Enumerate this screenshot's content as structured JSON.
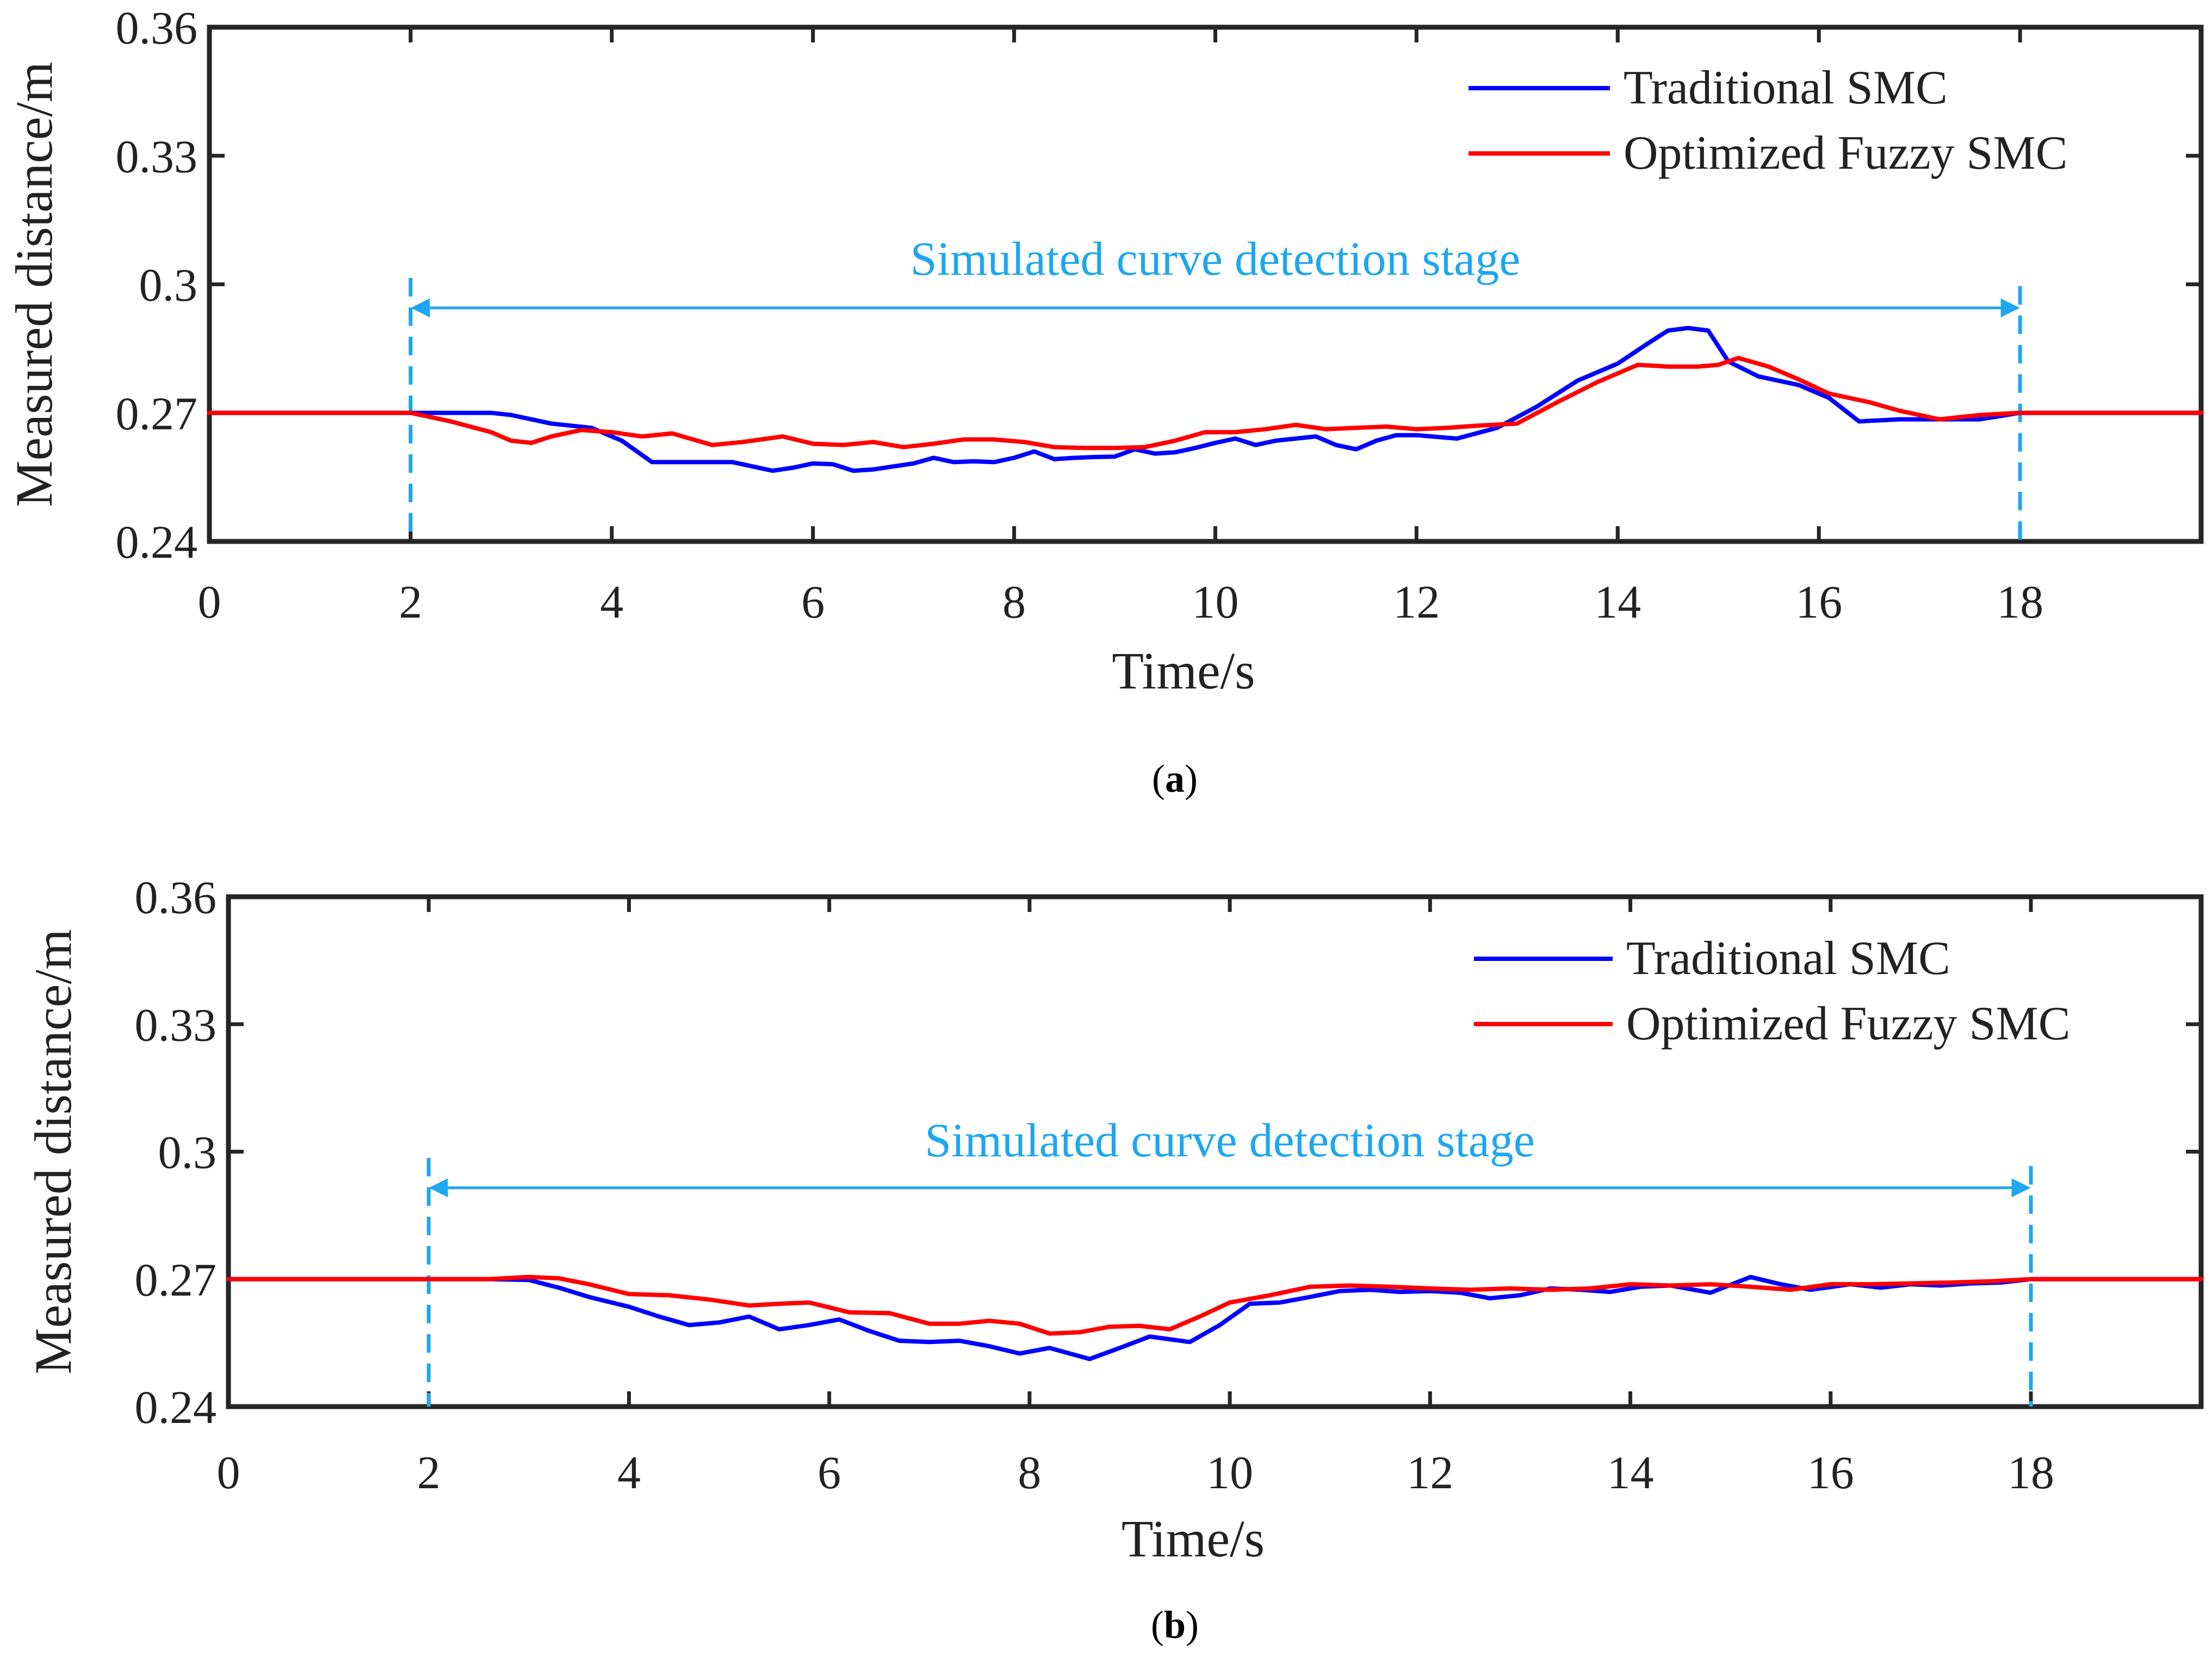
{
  "chart_data": [
    {
      "type": "line",
      "panel_label": "a",
      "xlabel": "Time/s",
      "ylabel": "Measured distance/m",
      "xlim": [
        0,
        19.8
      ],
      "ylim": [
        0.24,
        0.36
      ],
      "xticks": [
        "0",
        "2",
        "4",
        "6",
        "8",
        "10",
        "12",
        "14",
        "16",
        "18"
      ],
      "yticks": [
        "0.24",
        "0.27",
        "0.3",
        "0.33",
        "0.36"
      ],
      "grid": false,
      "legend_position": "top-right",
      "annotation": {
        "text": "Simulated curve detection stage",
        "x_start": 2,
        "x_end": 18,
        "arrow_y": 0.2945
      },
      "series": [
        {
          "name": "Traditional SMC",
          "color": "#0000ff",
          "x": [
            0,
            2,
            2.4,
            2.8,
            3.0,
            3.4,
            3.8,
            4.1,
            4.4,
            4.8,
            5.2,
            5.6,
            5.8,
            6.0,
            6.2,
            6.4,
            6.6,
            6.8,
            7.0,
            7.2,
            7.4,
            7.6,
            7.8,
            8.0,
            8.2,
            8.4,
            8.6,
            8.8,
            9.0,
            9.2,
            9.4,
            9.6,
            9.8,
            10.0,
            10.2,
            10.4,
            10.6,
            10.8,
            11.0,
            11.2,
            11.4,
            11.6,
            11.8,
            12.0,
            12.4,
            12.8,
            13.2,
            13.6,
            14.0,
            14.3,
            14.5,
            14.7,
            14.9,
            15.1,
            15.4,
            15.8,
            16.1,
            16.4,
            16.8,
            17.2,
            17.6,
            18.0,
            19.8
          ],
          "values": [
            0.27,
            0.27,
            0.27,
            0.27,
            0.2695,
            0.2675,
            0.2665,
            0.2635,
            0.2585,
            0.2585,
            0.2585,
            0.2565,
            0.2572,
            0.2582,
            0.258,
            0.2565,
            0.2568,
            0.2575,
            0.2582,
            0.2595,
            0.2585,
            0.2587,
            0.2585,
            0.2595,
            0.261,
            0.2592,
            0.2595,
            0.2597,
            0.2598,
            0.2615,
            0.2605,
            0.2608,
            0.2618,
            0.263,
            0.264,
            0.2625,
            0.2635,
            0.264,
            0.2645,
            0.2625,
            0.2615,
            0.2635,
            0.2648,
            0.2648,
            0.264,
            0.2665,
            0.2715,
            0.2775,
            0.2815,
            0.2862,
            0.2892,
            0.2898,
            0.2892,
            0.282,
            0.2785,
            0.2765,
            0.2735,
            0.268,
            0.2685,
            0.2685,
            0.2685,
            0.27,
            0.27
          ]
        },
        {
          "name": "Optimized Fuzzy SMC",
          "color": "#ff0000",
          "x": [
            0,
            2,
            2.4,
            2.8,
            3.0,
            3.2,
            3.4,
            3.7,
            4.0,
            4.3,
            4.6,
            5.0,
            5.3,
            5.7,
            6.0,
            6.3,
            6.6,
            6.9,
            7.2,
            7.5,
            7.8,
            8.1,
            8.4,
            8.7,
            9.0,
            9.3,
            9.6,
            9.9,
            10.2,
            10.5,
            10.8,
            11.1,
            11.4,
            11.7,
            12.0,
            12.3,
            12.6,
            13.0,
            13.4,
            13.8,
            14.2,
            14.5,
            14.8,
            15.0,
            15.2,
            15.5,
            15.8,
            16.1,
            16.5,
            16.8,
            17.2,
            17.6,
            18.0,
            19.8
          ],
          "values": [
            0.27,
            0.27,
            0.268,
            0.2655,
            0.2635,
            0.263,
            0.2645,
            0.266,
            0.2655,
            0.2645,
            0.2652,
            0.2625,
            0.2632,
            0.2645,
            0.2628,
            0.2625,
            0.2632,
            0.262,
            0.2628,
            0.2638,
            0.2638,
            0.2632,
            0.262,
            0.2618,
            0.2618,
            0.262,
            0.2635,
            0.2655,
            0.2655,
            0.2662,
            0.2672,
            0.2662,
            0.2665,
            0.2668,
            0.2662,
            0.2665,
            0.267,
            0.2675,
            0.2725,
            0.2772,
            0.2812,
            0.2808,
            0.2808,
            0.2812,
            0.2828,
            0.2808,
            0.2778,
            0.2745,
            0.2725,
            0.2705,
            0.2685,
            0.2695,
            0.27,
            0.27
          ]
        }
      ]
    },
    {
      "type": "line",
      "panel_label": "b",
      "xlabel": "Time/s",
      "ylabel": "Measured distance/m",
      "xlim": [
        0,
        19.7
      ],
      "ylim": [
        0.24,
        0.36
      ],
      "xticks": [
        "0",
        "2",
        "4",
        "6",
        "8",
        "10",
        "12",
        "14",
        "16",
        "18"
      ],
      "yticks": [
        "0.24",
        "0.27",
        "0.3",
        "0.33",
        "0.36"
      ],
      "grid": false,
      "legend_position": "top-right",
      "annotation": {
        "text": "Simulated curve detection stage",
        "x_start": 2,
        "x_end": 18,
        "arrow_y": 0.2915
      },
      "series": [
        {
          "name": "Traditional SMC",
          "color": "#0000ff",
          "x": [
            0,
            2,
            2.6,
            3.0,
            3.3,
            3.6,
            4.0,
            4.3,
            4.6,
            4.9,
            5.2,
            5.5,
            5.8,
            6.1,
            6.4,
            6.7,
            7.0,
            7.3,
            7.6,
            7.9,
            8.2,
            8.6,
            8.9,
            9.2,
            9.6,
            9.9,
            10.2,
            10.5,
            10.8,
            11.1,
            11.4,
            11.7,
            12.0,
            12.3,
            12.6,
            12.9,
            13.2,
            13.5,
            13.8,
            14.1,
            14.4,
            14.8,
            15.2,
            15.5,
            15.8,
            16.2,
            16.5,
            16.8,
            17.1,
            17.4,
            17.7,
            18.0,
            19.7
          ],
          "values": [
            0.27,
            0.27,
            0.27,
            0.2698,
            0.268,
            0.2658,
            0.2635,
            0.2612,
            0.2592,
            0.2598,
            0.2612,
            0.2582,
            0.2592,
            0.2605,
            0.2578,
            0.2555,
            0.2552,
            0.2555,
            0.2542,
            0.2525,
            0.2538,
            0.2512,
            0.2538,
            0.2565,
            0.2552,
            0.2592,
            0.2642,
            0.2645,
            0.2658,
            0.2672,
            0.2675,
            0.267,
            0.2672,
            0.2668,
            0.2655,
            0.2662,
            0.2678,
            0.2675,
            0.267,
            0.2682,
            0.2685,
            0.2668,
            0.2705,
            0.2688,
            0.2675,
            0.2688,
            0.268,
            0.2688,
            0.2685,
            0.269,
            0.2692,
            0.27,
            0.27
          ]
        },
        {
          "name": "Optimized Fuzzy SMC",
          "color": "#ff0000",
          "x": [
            0,
            2,
            2.6,
            3.0,
            3.3,
            3.6,
            4.0,
            4.4,
            4.8,
            5.2,
            5.5,
            5.8,
            6.2,
            6.6,
            7.0,
            7.3,
            7.6,
            7.9,
            8.2,
            8.5,
            8.8,
            9.1,
            9.4,
            9.7,
            10.0,
            10.4,
            10.8,
            11.2,
            11.6,
            12.0,
            12.4,
            12.8,
            13.2,
            13.6,
            14.0,
            14.4,
            14.8,
            15.2,
            15.6,
            16.0,
            16.4,
            16.8,
            17.2,
            17.6,
            18.0,
            19.7
          ],
          "values": [
            0.27,
            0.27,
            0.27,
            0.2705,
            0.2702,
            0.2688,
            0.2665,
            0.2662,
            0.2652,
            0.2638,
            0.2642,
            0.2645,
            0.2622,
            0.262,
            0.2595,
            0.2595,
            0.2602,
            0.2595,
            0.2572,
            0.2575,
            0.2588,
            0.259,
            0.2582,
            0.2612,
            0.2645,
            0.2662,
            0.2682,
            0.2685,
            0.2682,
            0.2678,
            0.2675,
            0.2678,
            0.2675,
            0.2678,
            0.2688,
            0.2685,
            0.2688,
            0.2682,
            0.2675,
            0.2688,
            0.2688,
            0.269,
            0.2692,
            0.2695,
            0.27,
            0.27
          ]
        }
      ]
    }
  ]
}
